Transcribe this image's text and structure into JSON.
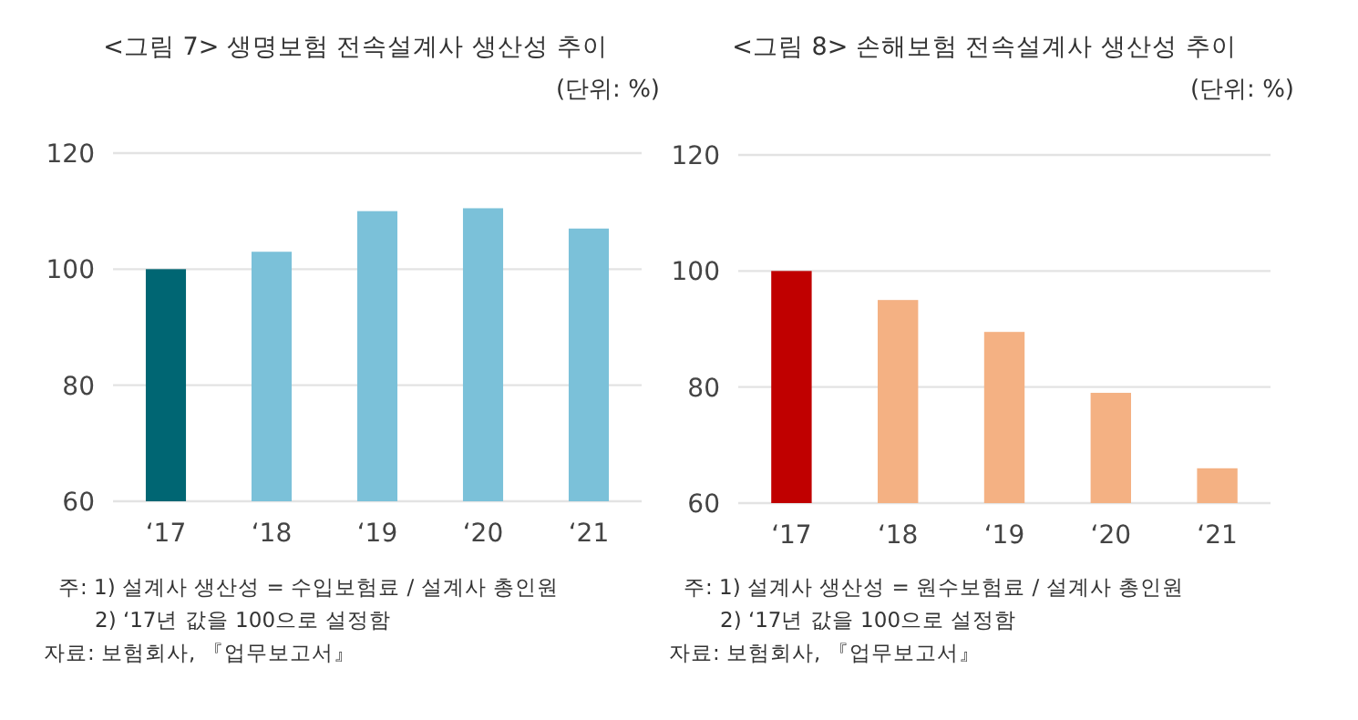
{
  "chart_data": [
    {
      "type": "bar",
      "title": "<그림 7> 생명보험 전속설계사 생산성 추이",
      "subtitle": "(단위: %)",
      "categories": [
        "‘17",
        "‘18",
        "‘19",
        "‘20",
        "‘21"
      ],
      "values": [
        100,
        103,
        110,
        110.5,
        107
      ],
      "colors": [
        "#006673",
        "#7bc1d9",
        "#7bc1d9",
        "#7bc1d9",
        "#7bc1d9"
      ],
      "ylim": [
        60,
        120
      ],
      "yticks": [
        60,
        80,
        100,
        120
      ],
      "grid": "y",
      "annotations": [
        "주: 1) 설계사 생산성 = 수입보험료 / 설계사 총인원",
        "2) ‘17년 값을 100으로 설정함",
        "자료: 보험회사, 『업무보고서』"
      ]
    },
    {
      "type": "bar",
      "title": "<그림 8> 손해보험 전속설계사 생산성 추이",
      "subtitle": "(단위: %)",
      "categories": [
        "‘17",
        "‘18",
        "‘19",
        "‘20",
        "‘21"
      ],
      "values": [
        100,
        95,
        89.5,
        79,
        66
      ],
      "colors": [
        "#c00000",
        "#f4b183",
        "#f4b183",
        "#f4b183",
        "#f4b183"
      ],
      "ylim": [
        60,
        120
      ],
      "yticks": [
        60,
        80,
        100,
        120
      ],
      "grid": "y",
      "annotations": [
        "주: 1) 설계사 생산성 = 원수보험료 / 설계사 총인원",
        "2) ‘17년 값을 100으로 설정함",
        "자료: 보험회사, 『업무보고서』"
      ]
    }
  ]
}
